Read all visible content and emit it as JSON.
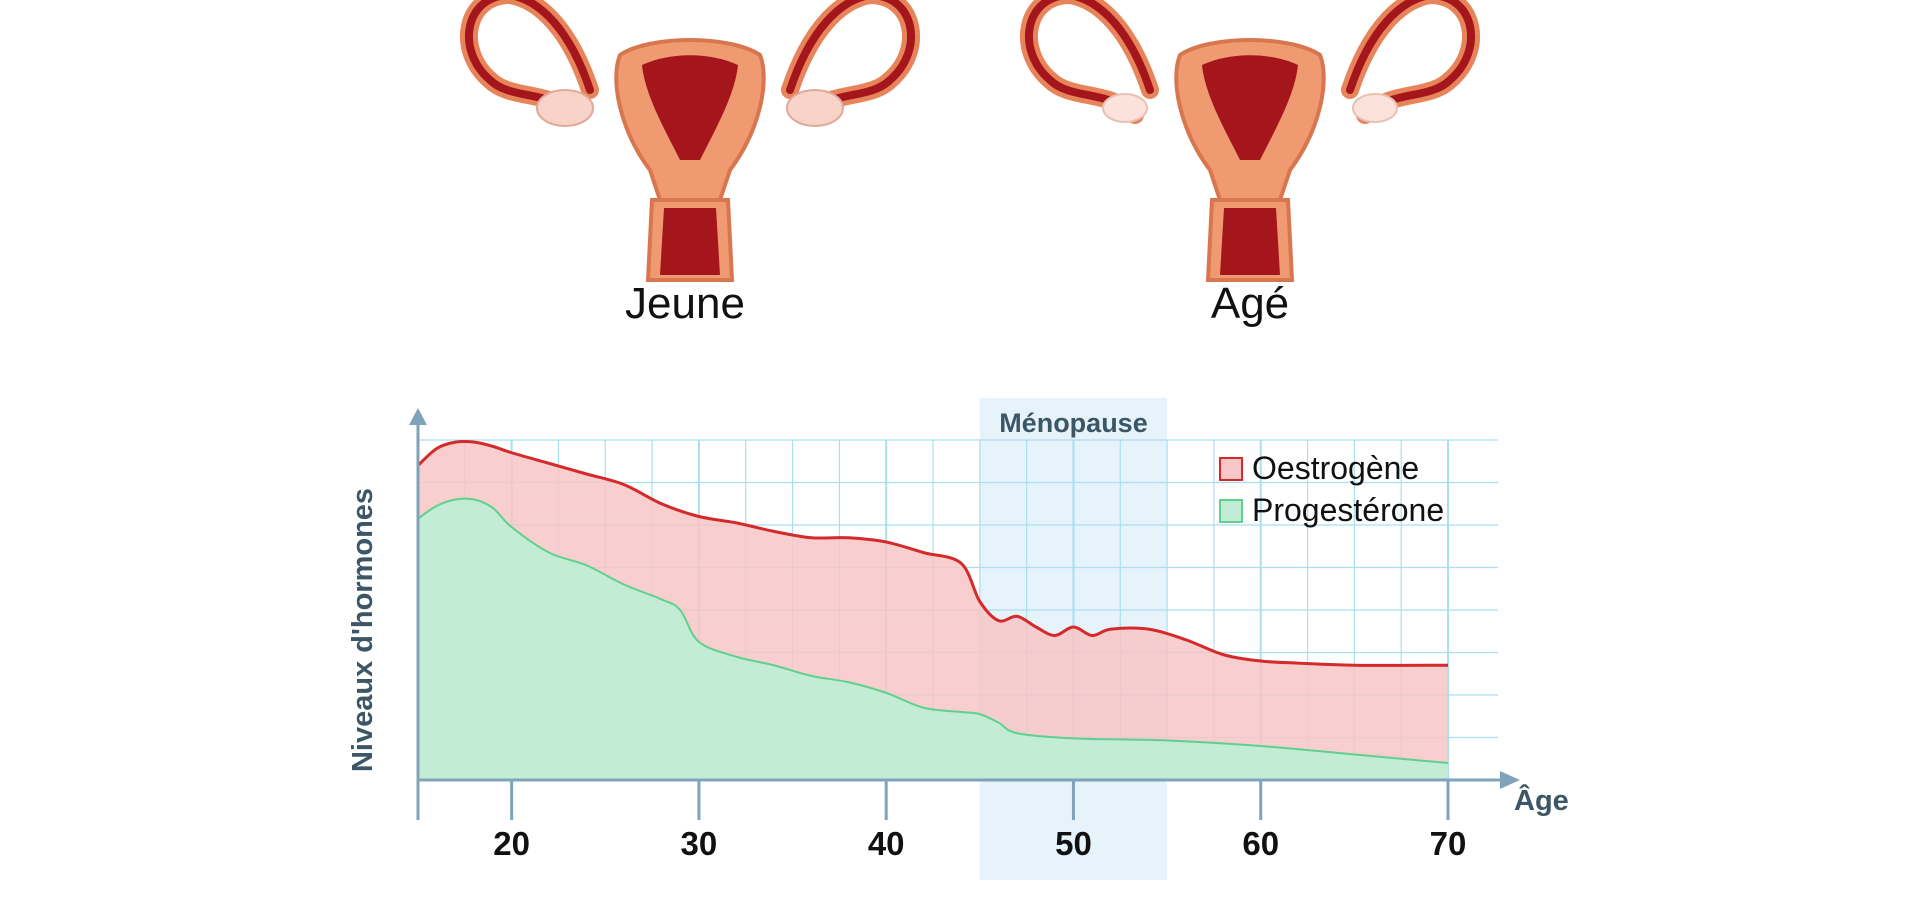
{
  "illustrations": {
    "young_label": "Jeune",
    "old_label": "Agé"
  },
  "colors": {
    "estrogen_fill": "#f7c6c6",
    "estrogen_line": "#d42a2a",
    "progesterone_fill": "#c3ecd4",
    "progesterone_line": "#5fd08f",
    "grid": "#a9dff0",
    "band": "#e6f3fb",
    "axis": "#7fa3b8",
    "organ_outer": "#f09a72",
    "organ_inner": "#a4161b"
  },
  "chart_data": {
    "type": "area",
    "xlabel": "Âge",
    "ylabel": "Niveaux d'hormones",
    "xlim": [
      15,
      70
    ],
    "ylim": [
      0,
      8
    ],
    "x_ticks": [
      "20",
      "30",
      "40",
      "50",
      "60",
      "70"
    ],
    "grid": true,
    "legend_position": "top-right",
    "highlight_band": {
      "label": "Ménopause",
      "from": 45,
      "to": 55
    },
    "series": [
      {
        "name": "Oestrogène",
        "points": [
          [
            15,
            7.4
          ],
          [
            16,
            7.8
          ],
          [
            17,
            7.95
          ],
          [
            18,
            7.95
          ],
          [
            19,
            7.85
          ],
          [
            20,
            7.7
          ],
          [
            22,
            7.45
          ],
          [
            24,
            7.2
          ],
          [
            26,
            6.95
          ],
          [
            28,
            6.5
          ],
          [
            30,
            6.2
          ],
          [
            32,
            6.05
          ],
          [
            34,
            5.85
          ],
          [
            36,
            5.7
          ],
          [
            38,
            5.7
          ],
          [
            40,
            5.6
          ],
          [
            42,
            5.35
          ],
          [
            44,
            5.1
          ],
          [
            45,
            4.2
          ],
          [
            46,
            3.75
          ],
          [
            47,
            3.85
          ],
          [
            48,
            3.6
          ],
          [
            49,
            3.4
          ],
          [
            50,
            3.6
          ],
          [
            51,
            3.4
          ],
          [
            52,
            3.55
          ],
          [
            54,
            3.55
          ],
          [
            56,
            3.3
          ],
          [
            58,
            2.95
          ],
          [
            60,
            2.8
          ],
          [
            62,
            2.75
          ],
          [
            65,
            2.7
          ],
          [
            70,
            2.7
          ]
        ]
      },
      {
        "name": "Progestérone",
        "points": [
          [
            15,
            6.15
          ],
          [
            16,
            6.45
          ],
          [
            17,
            6.6
          ],
          [
            18,
            6.6
          ],
          [
            19,
            6.4
          ],
          [
            20,
            5.95
          ],
          [
            22,
            5.35
          ],
          [
            24,
            5.05
          ],
          [
            26,
            4.6
          ],
          [
            28,
            4.25
          ],
          [
            29,
            4.0
          ],
          [
            30,
            3.25
          ],
          [
            32,
            2.9
          ],
          [
            34,
            2.7
          ],
          [
            36,
            2.45
          ],
          [
            38,
            2.3
          ],
          [
            40,
            2.05
          ],
          [
            42,
            1.7
          ],
          [
            44,
            1.6
          ],
          [
            45,
            1.55
          ],
          [
            46,
            1.35
          ],
          [
            47,
            1.1
          ],
          [
            50,
            0.98
          ],
          [
            55,
            0.93
          ],
          [
            60,
            0.8
          ],
          [
            65,
            0.6
          ],
          [
            70,
            0.4
          ]
        ]
      }
    ]
  }
}
